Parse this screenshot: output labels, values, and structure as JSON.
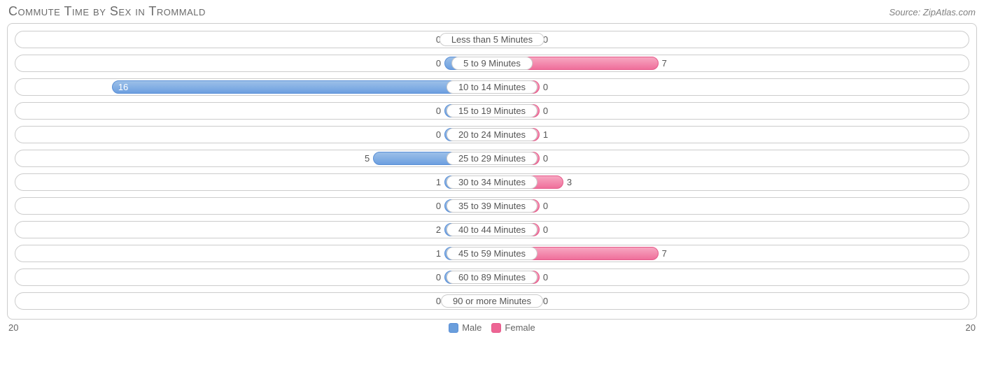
{
  "title": "Commute Time by Sex in Trommald",
  "source": "Source: ZipAtlas.com",
  "axis_max": 20,
  "min_bar_pct": 10,
  "colors": {
    "male_fill_start": "#9cc0e8",
    "male_fill_end": "#6d9fe0",
    "male_border": "#5a8fd6",
    "female_fill_start": "#f7a7c1",
    "female_fill_end": "#ef6f9b",
    "female_border": "#e65a8a",
    "row_border": "#cccccc",
    "text": "#555555",
    "title_text": "#6b6b6b",
    "source_text": "#808080",
    "background": "#ffffff",
    "legend_male": "#6a9edc",
    "legend_female": "#ed6594"
  },
  "legend": {
    "male": "Male",
    "female": "Female"
  },
  "categories": [
    {
      "label": "Less than 5 Minutes",
      "male": 0,
      "female": 0
    },
    {
      "label": "5 to 9 Minutes",
      "male": 0,
      "female": 7
    },
    {
      "label": "10 to 14 Minutes",
      "male": 16,
      "female": 0
    },
    {
      "label": "15 to 19 Minutes",
      "male": 0,
      "female": 0
    },
    {
      "label": "20 to 24 Minutes",
      "male": 0,
      "female": 1
    },
    {
      "label": "25 to 29 Minutes",
      "male": 5,
      "female": 0
    },
    {
      "label": "30 to 34 Minutes",
      "male": 1,
      "female": 3
    },
    {
      "label": "35 to 39 Minutes",
      "male": 0,
      "female": 0
    },
    {
      "label": "40 to 44 Minutes",
      "male": 2,
      "female": 0
    },
    {
      "label": "45 to 59 Minutes",
      "male": 1,
      "female": 7
    },
    {
      "label": "60 to 89 Minutes",
      "male": 0,
      "female": 0
    },
    {
      "label": "90 or more Minutes",
      "male": 0,
      "female": 0
    }
  ]
}
